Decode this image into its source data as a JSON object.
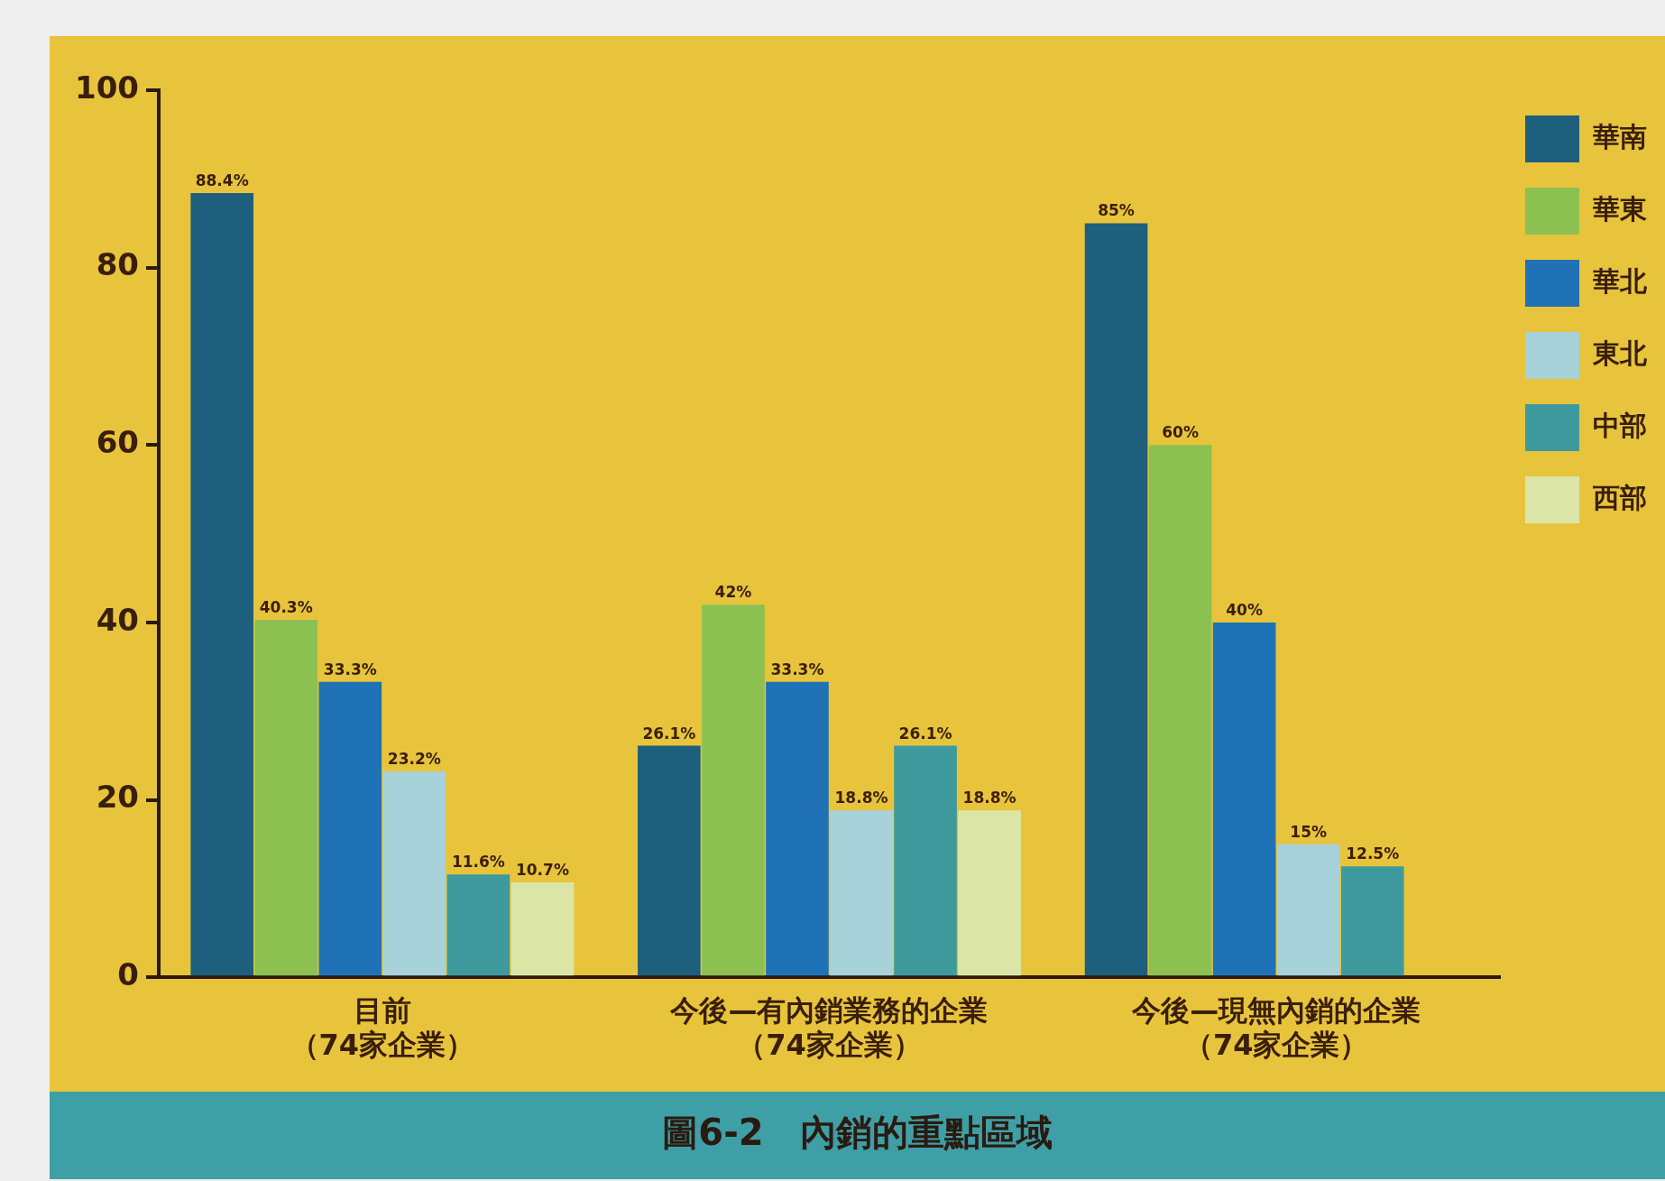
{
  "chart_data": {
    "type": "bar",
    "title": "圖6-2　內銷的重點區域",
    "categories": [
      "目前（74家企業）",
      "今後—有內銷業務的企業（74家企業）",
      "今後—現無內銷的企業（74家企業）"
    ],
    "series": [
      {
        "name": "華南",
        "color": "#1d5f7c",
        "values": [
          88.4,
          26.1,
          85
        ],
        "value_labels": [
          "88.4%",
          "26.1%",
          "85%"
        ]
      },
      {
        "name": "華東",
        "color": "#8cc152",
        "values": [
          40.3,
          42,
          60
        ],
        "value_labels": [
          "40.3%",
          "42%",
          "60%"
        ]
      },
      {
        "name": "華北",
        "color": "#1f72b6",
        "values": [
          33.3,
          33.3,
          40
        ],
        "value_labels": [
          "33.3%",
          "33.3%",
          "40%"
        ]
      },
      {
        "name": "東北",
        "color": "#a8d2da",
        "values": [
          23.2,
          18.8,
          15
        ],
        "value_labels": [
          "23.2%",
          "18.8%",
          "15%"
        ]
      },
      {
        "name": "中部",
        "color": "#3e9a9c",
        "values": [
          11.6,
          26.1,
          12.5
        ],
        "value_labels": [
          "11.6%",
          "26.1%",
          "12.5%"
        ]
      },
      {
        "name": "西部",
        "color": "#dbe6a6",
        "values": [
          10.7,
          18.8,
          null
        ],
        "value_labels": [
          "10.7%",
          "18.8%",
          null
        ]
      }
    ],
    "ylim": [
      0,
      100
    ],
    "yticks": [
      0,
      20,
      40,
      60,
      80,
      100
    ],
    "grid": false,
    "legend": "top right"
  }
}
